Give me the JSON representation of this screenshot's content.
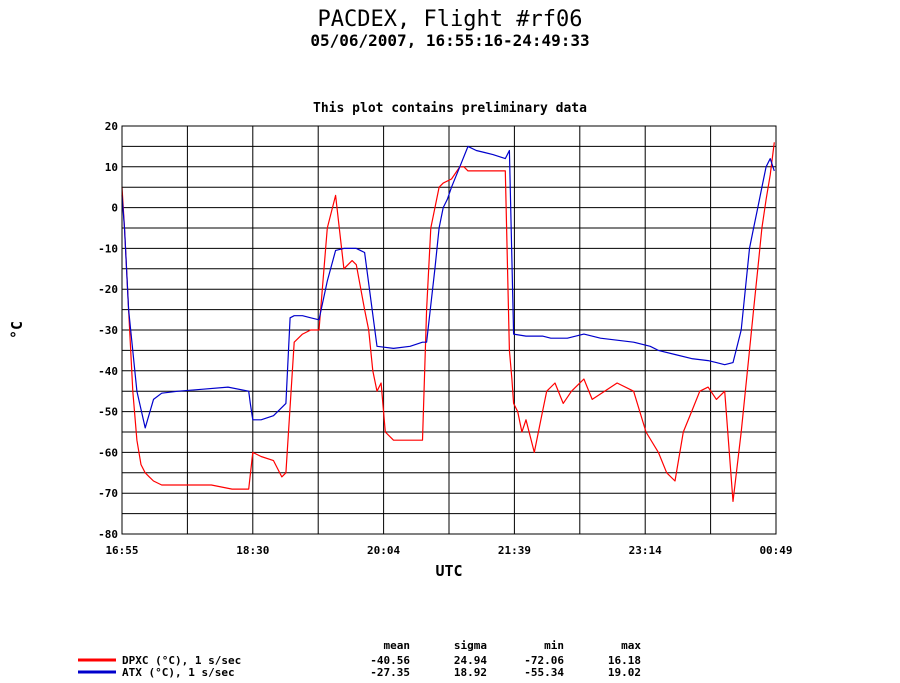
{
  "chart_data": {
    "type": "line",
    "title": "PACDEX, Flight #rf06",
    "subtitle": "05/06/2007, 16:55:16-24:49:33",
    "note": "This plot contains preliminary data",
    "xlabel": "UTC",
    "ylabel": "°C",
    "ylim": [
      -80,
      20
    ],
    "yticks": [
      "20",
      "10",
      "0",
      "-10",
      "-20",
      "-30",
      "-40",
      "-50",
      "-60",
      "-70",
      "-80"
    ],
    "xticks": [
      "16:55",
      "18:30",
      "20:04",
      "21:39",
      "23:14",
      "00:49"
    ],
    "grid": true,
    "series": [
      {
        "name": "DPXC (°C), 1 s/sec",
        "color": "#ff0000",
        "x": [
          16.92,
          16.95,
          17.0,
          17.05,
          17.1,
          17.15,
          17.2,
          17.25,
          17.3,
          17.4,
          17.5,
          17.75,
          18.0,
          18.25,
          18.45,
          18.5,
          18.6,
          18.75,
          18.85,
          18.9,
          19.0,
          19.1,
          19.2,
          19.3,
          19.4,
          19.5,
          19.6,
          19.7,
          19.75,
          19.85,
          19.9,
          19.95,
          20.0,
          20.05,
          20.1,
          20.2,
          20.35,
          20.45,
          20.55,
          20.6,
          20.65,
          20.75,
          20.8,
          20.9,
          21.0,
          21.05,
          21.1,
          21.2,
          21.3,
          21.45,
          21.55,
          21.6,
          21.63,
          21.65,
          21.7,
          21.75,
          21.8,
          21.9,
          22.0,
          22.05,
          22.15,
          22.25,
          22.35,
          22.5,
          22.6,
          22.75,
          22.9,
          23.1,
          23.25,
          23.4,
          23.5,
          23.6,
          23.7,
          23.8,
          23.9,
          24.0,
          24.1,
          24.2,
          24.3,
          24.4,
          24.5,
          24.55,
          24.6,
          24.65,
          24.7,
          24.75,
          24.8
        ],
        "values": [
          5,
          -5,
          -25,
          -45,
          -57,
          -63,
          -65,
          -66,
          -67,
          -68,
          -68,
          -68,
          -68,
          -69,
          -69,
          -60,
          -61,
          -62,
          -66,
          -65,
          -33,
          -31,
          -30,
          -30,
          -5,
          3,
          -15,
          -13,
          -14,
          -25,
          -30,
          -40,
          -45,
          -43,
          -55,
          -57,
          -57,
          -57,
          -57,
          -25,
          -5,
          5,
          6,
          7,
          10,
          10,
          9,
          9,
          9,
          9,
          9,
          -35,
          -42,
          -48,
          -50,
          -55,
          -52,
          -60,
          -50,
          -45,
          -43,
          -48,
          -45,
          -42,
          -47,
          -45,
          -43,
          -45,
          -55,
          -60,
          -65,
          -67,
          -55,
          -50,
          -45,
          -44,
          -47,
          -45,
          -72,
          -55,
          -35,
          -25,
          -15,
          -5,
          2,
          8,
          16
        ]
      },
      {
        "name": "ATX (°C), 1 s/sec",
        "color": "#0000cc",
        "x": [
          16.92,
          16.95,
          17.0,
          17.1,
          17.2,
          17.3,
          17.4,
          17.6,
          17.9,
          18.2,
          18.45,
          18.47,
          18.5,
          18.6,
          18.75,
          18.9,
          18.95,
          19.0,
          19.1,
          19.2,
          19.3,
          19.4,
          19.5,
          19.6,
          19.75,
          19.8,
          19.85,
          20.0,
          20.2,
          20.4,
          20.55,
          20.6,
          20.7,
          20.75,
          20.8,
          20.85,
          20.9,
          21.0,
          21.1,
          21.2,
          21.3,
          21.4,
          21.55,
          21.6,
          21.65,
          21.8,
          22.0,
          22.1,
          22.3,
          22.5,
          22.7,
          22.9,
          23.1,
          23.3,
          23.4,
          23.6,
          23.8,
          24.0,
          24.1,
          24.2,
          24.3,
          24.4,
          24.5,
          24.55,
          24.6,
          24.65,
          24.7,
          24.75,
          24.8
        ],
        "values": [
          3,
          -5,
          -25,
          -45,
          -54,
          -47,
          -45.5,
          -45,
          -44.5,
          -44,
          -45,
          -48,
          -52,
          -52,
          -51,
          -48,
          -27,
          -26.5,
          -26.5,
          -27,
          -27.5,
          -18,
          -10.5,
          -10,
          -10,
          -10.5,
          -11,
          -34,
          -34.5,
          -34,
          -33,
          -33,
          -15,
          -5,
          0,
          2,
          5,
          10,
          15,
          14,
          13.5,
          13,
          12,
          14,
          -31,
          -31.5,
          -31.5,
          -32,
          -32,
          -31,
          -32,
          -32.5,
          -33,
          -34,
          -35,
          -36,
          -37,
          -37.5,
          -38,
          -38.5,
          -38,
          -30,
          -10,
          -5,
          0,
          5,
          10,
          12,
          9
        ]
      }
    ],
    "stats": {
      "headers": [
        "mean",
        "sigma",
        "min",
        "max"
      ],
      "rows": [
        {
          "label": "DPXC (°C), 1 s/sec",
          "mean": "-40.56",
          "sigma": "24.94",
          "min": "-72.06",
          "max": "16.18"
        },
        {
          "label": "ATX (°C), 1 s/sec",
          "mean": "-27.35",
          "sigma": "18.92",
          "min": "-55.34",
          "max": "19.02"
        }
      ]
    }
  }
}
